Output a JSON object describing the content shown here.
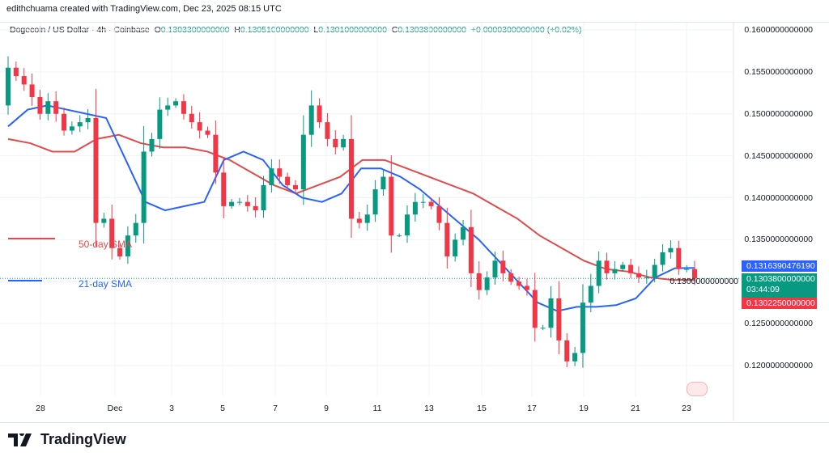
{
  "credit": "edithchuama created with TradingView.com, Dec 23, 2025 08:15 UTC",
  "legend": {
    "symbol": "Dogecoin / US Dollar · 4h · Coinbase",
    "o_label": "O",
    "o": "0.1303300000000",
    "h_label": "H",
    "h": "0.1305100000000",
    "l_label": "L",
    "l": "0.1301000000000",
    "c_label": "C",
    "c": "0.1303800000000",
    "change": "+0.0000300000000 (+0.02%)"
  },
  "badges": {
    "sma21": "0.1316390476190",
    "last": "0.1303800000000",
    "countdown": "03:44:09",
    "sma50": "0.1302250000000"
  },
  "sma_labels": {
    "sma50": "50-day SMA",
    "sma21": "21-day SMA"
  },
  "logo": {
    "text": "TradingView"
  },
  "chart_data": {
    "type": "candlestick",
    "timeframe": "4h",
    "colors": {
      "up": "#089981",
      "down": "#f23645",
      "sma21": "#2962ff",
      "sma50": "#e04b4b"
    },
    "ylim": [
      0.1175,
      0.1615
    ],
    "y_ticks": [
      "0.1600000000000",
      "0.1550000000000",
      "0.1500000000000",
      "0.1450000000000",
      "0.1400000000000",
      "0.1350000000000",
      "0.1300000000000",
      "0.1250000000000",
      "0.1200000000000"
    ],
    "x_ticks": [
      "28",
      "Dec",
      "3",
      "5",
      "7",
      "9",
      "11",
      "13",
      "15",
      "17",
      "19",
      "21",
      "23"
    ],
    "first_open": 0.151,
    "closes": [
      0.1555,
      0.1545,
      0.1535,
      0.152,
      0.15,
      0.1515,
      0.15,
      0.148,
      0.1485,
      0.149,
      0.1495,
      0.137,
      0.1375,
      0.134,
      0.133,
      0.1355,
      0.137,
      0.1455,
      0.147,
      0.1505,
      0.151,
      0.1515,
      0.15,
      0.149,
      0.148,
      0.1475,
      0.143,
      0.139,
      0.1395,
      0.1395,
      0.139,
      0.1385,
      0.1415,
      0.1435,
      0.1425,
      0.1415,
      0.141,
      0.1475,
      0.151,
      0.149,
      0.147,
      0.146,
      0.147,
      0.1375,
      0.137,
      0.138,
      0.141,
      0.1425,
      0.1355,
      0.1355,
      0.138,
      0.1395,
      0.1395,
      0.139,
      0.137,
      0.133,
      0.135,
      0.1365,
      0.131,
      0.129,
      0.1305,
      0.1325,
      0.131,
      0.13,
      0.1295,
      0.129,
      0.1245,
      0.1245,
      0.128,
      0.123,
      0.1205,
      0.1215,
      0.1275,
      0.1295,
      0.1325,
      0.131,
      0.1315,
      0.132,
      0.131,
      0.1305,
      0.1305,
      0.132,
      0.1335,
      0.134,
      0.1315,
      0.1315,
      0.13038
    ],
    "sma21": [
      0.1485,
      0.1505,
      0.151,
      0.1505,
      0.15,
      0.1495,
      0.1445,
      0.1395,
      0.1385,
      0.139,
      0.1395,
      0.1445,
      0.1455,
      0.1445,
      0.1415,
      0.14,
      0.1395,
      0.1405,
      0.1435,
      0.1435,
      0.1425,
      0.141,
      0.139,
      0.137,
      0.135,
      0.1325,
      0.13,
      0.1275,
      0.1265,
      0.127,
      0.127,
      0.1272,
      0.128,
      0.1305,
      0.1316,
      0.13164
    ],
    "sma50": [
      0.147,
      0.1465,
      0.1455,
      0.1455,
      0.147,
      0.1475,
      0.1465,
      0.146,
      0.146,
      0.1455,
      0.1445,
      0.143,
      0.1415,
      0.1405,
      0.1415,
      0.1425,
      0.1445,
      0.1445,
      0.1435,
      0.1425,
      0.1415,
      0.1405,
      0.139,
      0.1375,
      0.1355,
      0.134,
      0.1325,
      0.1315,
      0.1312,
      0.1305,
      0.1302,
      0.13022
    ]
  }
}
